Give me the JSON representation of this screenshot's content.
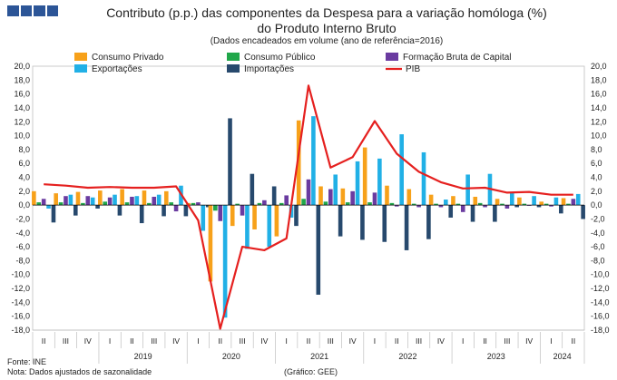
{
  "header": {
    "title_line1": "Contributo (p.p.) das componentes da Despesa para a variação homóloga (%)",
    "title_line2": "do Produto Interno Bruto",
    "subtitle": "(Dados encadeados em volume  (ano de referência=2016)"
  },
  "footer": {
    "source": "Fonte: INE",
    "note": "Nota: Dados ajustados de sazonalidade",
    "credit": "(Gráfico: GEE)"
  },
  "chart_data": {
    "type": "bar",
    "categories": [
      "II",
      "III",
      "IV",
      "I",
      "II",
      "III",
      "IV",
      "I",
      "II",
      "III",
      "IV",
      "I",
      "II",
      "III",
      "IV",
      "I",
      "II",
      "III",
      "IV",
      "I",
      "II",
      "III",
      "IV",
      "I",
      "II"
    ],
    "year_labels": [
      {
        "label": "2019",
        "quarters": [
          3,
          4,
          5,
          6
        ]
      },
      {
        "label": "2020",
        "quarters": [
          7,
          8,
          9,
          10
        ]
      },
      {
        "label": "2021",
        "quarters": [
          11,
          12,
          13,
          14
        ]
      },
      {
        "label": "2022",
        "quarters": [
          15,
          16,
          17,
          18
        ]
      },
      {
        "label": "2023",
        "quarters": [
          19,
          20,
          21,
          22
        ]
      },
      {
        "label": "2024",
        "quarters": [
          23,
          24
        ]
      }
    ],
    "ylim": [
      -18,
      20
    ],
    "yticks": [
      "20,0",
      "18,0",
      "16,0",
      "14,0",
      "12,0",
      "10,0",
      "8,0",
      "6,0",
      "4,0",
      "2,0",
      "0,0",
      "-2,0",
      "-4,0",
      "-6,0",
      "-8,0",
      "-10,0",
      "-12,0",
      "-14,0",
      "-16,0",
      "-18,0"
    ],
    "grid": false,
    "legend_position": "top",
    "series": [
      {
        "name": "Consumo Privado",
        "color": "#f7a11a",
        "values": [
          2.0,
          1.7,
          1.9,
          2.1,
          2.3,
          2.1,
          2.0,
          0.3,
          -11.0,
          -3.0,
          -3.5,
          -4.5,
          12.2,
          2.7,
          2.4,
          8.3,
          2.8,
          2.3,
          1.5,
          1.3,
          1.2,
          0.9,
          1.1,
          0.5,
          1.0
        ]
      },
      {
        "name": "Consumo Público",
        "color": "#21a74a",
        "values": [
          0.4,
          0.4,
          0.3,
          0.5,
          0.4,
          0.3,
          0.4,
          0.3,
          -0.8,
          0.2,
          0.3,
          0.3,
          0.9,
          0.5,
          0.4,
          0.4,
          0.3,
          0.2,
          0.2,
          0.2,
          0.3,
          0.2,
          0.2,
          0.2,
          0.2
        ]
      },
      {
        "name": "Formação Bruta de Capital",
        "color": "#6a3ba0",
        "values": [
          0.9,
          1.3,
          1.3,
          1.1,
          1.2,
          1.2,
          -0.9,
          0.4,
          -2.3,
          -1.5,
          0.7,
          1.4,
          3.7,
          2.3,
          2.0,
          1.8,
          -0.2,
          -0.3,
          -0.3,
          -1.0,
          -0.3,
          -0.5,
          -0.1,
          -0.2,
          0.9
        ]
      },
      {
        "name": "Exportações",
        "color": "#21b0e6",
        "values": [
          -0.5,
          1.5,
          1.1,
          1.5,
          1.3,
          1.5,
          2.8,
          -3.7,
          -16.2,
          -6.3,
          -6.0,
          -1.8,
          12.8,
          4.4,
          6.3,
          6.7,
          10.2,
          7.6,
          0.8,
          4.4,
          4.5,
          1.9,
          1.3,
          1.1,
          1.6
        ]
      },
      {
        "name": "Importações",
        "color": "#27496d",
        "values": [
          -2.5,
          -1.5,
          -0.5,
          -1.5,
          -2.6,
          -1.6,
          -1.6,
          -0.3,
          12.5,
          4.5,
          2.7,
          -3.0,
          -12.9,
          -4.5,
          -5.0,
          -5.3,
          -6.5,
          -4.9,
          -1.8,
          -2.4,
          -2.4,
          -0.3,
          -0.3,
          -1.2,
          -2.0
        ]
      },
      {
        "name": "PIB",
        "color": "#e5201f",
        "type": "line",
        "values": [
          3.0,
          2.8,
          2.5,
          2.6,
          2.5,
          2.5,
          2.7,
          -2.2,
          -17.8,
          -6.0,
          -6.5,
          -4.8,
          17.2,
          5.4,
          6.9,
          12.1,
          7.4,
          4.8,
          3.3,
          2.4,
          2.5,
          1.8,
          1.9,
          1.5,
          1.5
        ]
      }
    ]
  }
}
